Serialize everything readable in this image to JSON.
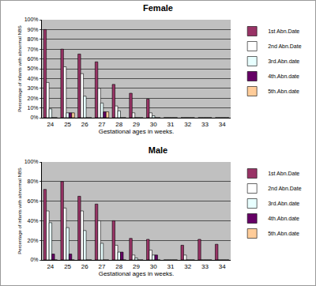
{
  "chart_data": [
    {
      "type": "bar",
      "title": "Female",
      "x_label": "Gestational ages in weeks.",
      "y_label": "Percentage of infants with abnormal NBS",
      "categories": [
        "24",
        "25",
        "26",
        "27",
        "28",
        "29",
        "30",
        "31",
        "32",
        "33",
        "34"
      ],
      "series": [
        {
          "name": "1st Abn.Date",
          "color": "#993366",
          "values": [
            90,
            70,
            65,
            57,
            34,
            25,
            19,
            0,
            0,
            0,
            0
          ]
        },
        {
          "name": "2nd Abn.Date",
          "color": "#ffffff",
          "values": [
            36,
            52,
            45,
            30,
            12,
            5,
            5,
            0,
            0,
            0,
            0
          ]
        },
        {
          "name": "3rd.Abn.date",
          "color": "#e8ffff",
          "values": [
            9,
            5,
            22,
            15,
            7,
            0,
            2,
            0,
            0,
            0,
            0
          ]
        },
        {
          "name": "4th.Abn.date",
          "color": "#660066",
          "values": [
            0,
            5,
            0,
            6,
            0,
            0,
            0,
            0,
            0,
            0,
            0
          ]
        },
        {
          "name": "5th.Abn.date",
          "color": "#ffcc99",
          "values": [
            0,
            5,
            0,
            6,
            0,
            0,
            0,
            0,
            0,
            0,
            0
          ]
        }
      ],
      "ylim": [
        0,
        100
      ],
      "yticks": [
        {
          "value": 0,
          "label": "0%"
        },
        {
          "value": 10,
          "label": "10%"
        },
        {
          "value": 20,
          "label": "20%"
        },
        {
          "value": 30,
          "label": "30%"
        },
        {
          "value": 40,
          "label": "40%"
        },
        {
          "value": 50,
          "label": "50%"
        },
        {
          "value": 60,
          "label": "60%"
        },
        {
          "value": 70,
          "label": "70%"
        },
        {
          "value": 80,
          "label": "80%"
        },
        {
          "value": 90,
          "label": "90%"
        },
        {
          "value": 100,
          "label": "100%"
        }
      ],
      "grid": true,
      "legend": "right"
    },
    {
      "type": "bar",
      "title": "Male",
      "x_label": "Gestational ages in weeks.",
      "y_label": "Percentage of infants with abnormal NBS",
      "categories": [
        "24",
        "25",
        "26",
        "27",
        "28",
        "29",
        "30",
        "31",
        "32",
        "33",
        "34"
      ],
      "series": [
        {
          "name": "1st Abn.Date",
          "color": "#993366",
          "values": [
            72,
            80,
            65,
            57,
            40,
            22,
            21,
            0,
            15,
            21,
            16
          ]
        },
        {
          "name": "2nd Abn.Date",
          "color": "#ffffff",
          "values": [
            50,
            53,
            50,
            40,
            15,
            5,
            10,
            0,
            5,
            0,
            0
          ]
        },
        {
          "name": "3rd.Abn.date",
          "color": "#e8ffff",
          "values": [
            38,
            33,
            30,
            17,
            8,
            2,
            5,
            0,
            0,
            0,
            0
          ]
        },
        {
          "name": "4th.Abn.date",
          "color": "#660066",
          "values": [
            6,
            6,
            0,
            0,
            8,
            0,
            5,
            0,
            0,
            0,
            0
          ]
        },
        {
          "name": "5th.Abn.date",
          "color": "#ffcc99",
          "values": [
            0,
            0,
            0,
            0,
            0,
            0,
            0,
            0,
            0,
            0,
            0
          ]
        }
      ],
      "ylim": [
        0,
        100
      ],
      "yticks": [
        {
          "value": 0,
          "label": "0%"
        },
        {
          "value": 20,
          "label": "20%"
        },
        {
          "value": 40,
          "label": "40%"
        },
        {
          "value": 60,
          "label": "60%"
        },
        {
          "value": 80,
          "label": "80%"
        },
        {
          "value": 100,
          "label": "100%"
        }
      ],
      "grid": true,
      "legend": "right"
    }
  ]
}
